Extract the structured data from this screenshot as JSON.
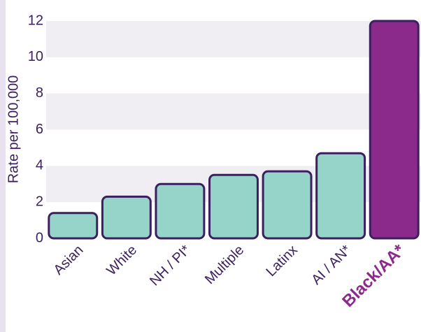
{
  "chart_data": {
    "type": "bar",
    "y_label": "Rate per 100,000",
    "categories": [
      "Asian",
      "White",
      "NH / PI*",
      "Multiple",
      "Latinx",
      "AI / AN*",
      "Black/AA*"
    ],
    "values": [
      1.4,
      2.3,
      3.0,
      3.5,
      3.7,
      4.7,
      12.0
    ],
    "color": "#96d3c8",
    "colors": [
      "#96d3c8",
      "#96d3c8",
      "#96d3c8",
      "#96d3c8",
      "#96d3c8",
      "#96d3c8",
      "#8c2a8c"
    ],
    "ylim": [
      0,
      12
    ],
    "yticks": [
      0,
      2,
      4,
      6,
      8,
      10,
      12
    ],
    "grid": true
  }
}
